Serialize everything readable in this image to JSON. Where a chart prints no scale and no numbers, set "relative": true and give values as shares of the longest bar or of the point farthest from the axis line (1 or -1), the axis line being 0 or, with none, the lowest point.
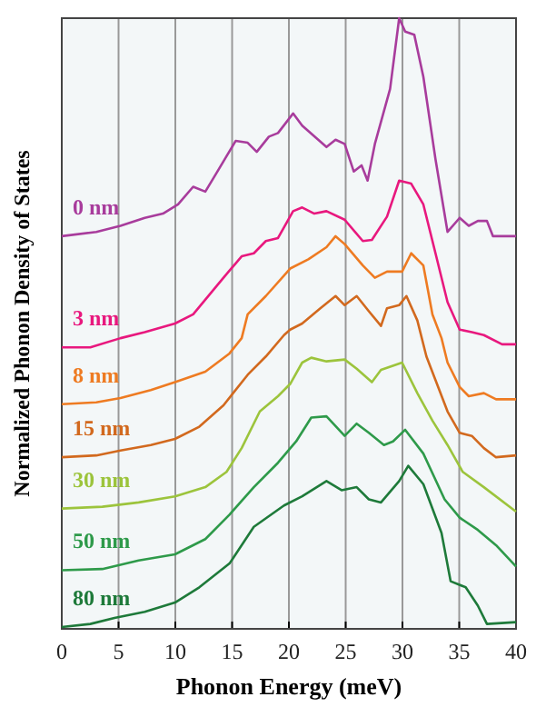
{
  "chart_data": {
    "type": "line",
    "relative": true,
    "xlabel": "Phonon Energy (meV)",
    "ylabel": "Normalized Phonon Density of States",
    "xlim": [
      0,
      40
    ],
    "xticks": [
      0,
      5,
      10,
      15,
      20,
      25,
      30,
      35,
      40
    ],
    "grid": "x",
    "marker": "none",
    "line_style": "solid",
    "series": [
      {
        "name": "0 nm",
        "color": "#a83c9c",
        "x": [
          0,
          3.04,
          5.17,
          7.31,
          8.91,
          10.24,
          11.57,
          12.64,
          13.71,
          15.31,
          16.37,
          17.17,
          18.24,
          19.04,
          20.37,
          21.17,
          23.31,
          24.11,
          24.91,
          25.71,
          26.4,
          26.93,
          27.57,
          28.91,
          29.71,
          30.24,
          31.04,
          31.84,
          32.91,
          33.97,
          35.04,
          35.84,
          36.64,
          37.44,
          37.97,
          40
        ],
        "values": [
          0.643,
          0.65,
          0.66,
          0.673,
          0.68,
          0.695,
          0.724,
          0.716,
          0.749,
          0.799,
          0.796,
          0.781,
          0.806,
          0.812,
          0.844,
          0.824,
          0.789,
          0.801,
          0.794,
          0.749,
          0.759,
          0.734,
          0.794,
          0.884,
          1,
          0.978,
          0.973,
          0.904,
          0.769,
          0.65,
          0.673,
          0.66,
          0.668,
          0.668,
          0.643,
          0.643
        ]
      },
      {
        "name": "3 nm",
        "color": "#e8187e",
        "x": [
          0,
          2.51,
          5.17,
          7.31,
          9.97,
          11.57,
          14.24,
          15.84,
          16.91,
          17.97,
          19.04,
          20.37,
          21.17,
          22.24,
          23.31,
          24.91,
          26.51,
          27.31,
          28.64,
          29.71,
          30.77,
          31.84,
          32.91,
          33.97,
          35.04,
          36.11,
          37.17,
          38.77,
          40
        ],
        "values": [
          0.461,
          0.461,
          0.476,
          0.486,
          0.5,
          0.515,
          0.575,
          0.61,
          0.615,
          0.635,
          0.64,
          0.684,
          0.69,
          0.68,
          0.684,
          0.67,
          0.635,
          0.637,
          0.675,
          0.734,
          0.729,
          0.695,
          0.615,
          0.535,
          0.49,
          0.486,
          0.481,
          0.466,
          0.466
        ]
      },
      {
        "name": "8 nm",
        "color": "#ee7b22",
        "x": [
          0,
          3.04,
          5.17,
          7.84,
          9.97,
          12.64,
          14.77,
          15.84,
          16.37,
          17.97,
          20.11,
          21.71,
          23.31,
          24.11,
          24.91,
          26.51,
          27.57,
          28.64,
          29.97,
          30.77,
          31.84,
          32.64,
          33.44,
          33.97,
          35.04,
          35.84,
          37.17,
          38.24,
          40
        ],
        "values": [
          0.368,
          0.371,
          0.378,
          0.391,
          0.404,
          0.421,
          0.451,
          0.476,
          0.515,
          0.545,
          0.59,
          0.605,
          0.625,
          0.643,
          0.63,
          0.595,
          0.575,
          0.585,
          0.585,
          0.615,
          0.595,
          0.515,
          0.476,
          0.436,
          0.396,
          0.381,
          0.386,
          0.376,
          0.376
        ]
      },
      {
        "name": "15 nm",
        "color": "#d2691e",
        "x": [
          0,
          3.04,
          5.17,
          7.84,
          9.97,
          12.11,
          14.24,
          16.37,
          17.97,
          19.57,
          20.11,
          21.17,
          22.77,
          24.11,
          24.91,
          25.97,
          27.04,
          28.11,
          28.64,
          29.71,
          30.35,
          31.31,
          32.11,
          33.97,
          35.04,
          36.11,
          37.17,
          38.24,
          40
        ],
        "values": [
          0.281,
          0.284,
          0.292,
          0.301,
          0.311,
          0.331,
          0.366,
          0.416,
          0.446,
          0.481,
          0.49,
          0.5,
          0.525,
          0.545,
          0.53,
          0.545,
          0.52,
          0.496,
          0.525,
          0.53,
          0.545,
          0.505,
          0.446,
          0.356,
          0.321,
          0.316,
          0.296,
          0.281,
          0.284
        ]
      },
      {
        "name": "30 nm",
        "color": "#9cc43c",
        "x": [
          0,
          3.57,
          6.77,
          9.97,
          12.64,
          14.51,
          15.84,
          17.44,
          19.04,
          20.11,
          21.17,
          21.97,
          23.31,
          24.91,
          25.97,
          27.31,
          28.11,
          29.97,
          31.31,
          32.64,
          33.97,
          35.31,
          37.17,
          40
        ],
        "values": [
          0.197,
          0.2,
          0.207,
          0.217,
          0.232,
          0.257,
          0.296,
          0.356,
          0.381,
          0.401,
          0.436,
          0.444,
          0.438,
          0.441,
          0.426,
          0.404,
          0.424,
          0.436,
          0.386,
          0.341,
          0.301,
          0.257,
          0.232,
          0.192
        ]
      },
      {
        "name": "50 nm",
        "color": "#2e9a4a",
        "x": [
          0,
          3.57,
          6.77,
          9.97,
          12.64,
          14.77,
          16.91,
          19.04,
          20.64,
          21.97,
          23.31,
          24.91,
          25.97,
          27.04,
          28.37,
          29.17,
          30.24,
          31.84,
          33.71,
          35.04,
          36.64,
          38.24,
          40
        ],
        "values": [
          0.096,
          0.098,
          0.112,
          0.122,
          0.147,
          0.187,
          0.232,
          0.272,
          0.307,
          0.346,
          0.348,
          0.316,
          0.336,
          0.321,
          0.301,
          0.307,
          0.326,
          0.287,
          0.212,
          0.182,
          0.162,
          0.137,
          0.102
        ]
      },
      {
        "name": "80 nm",
        "color": "#1e7a3a",
        "x": [
          0,
          2.51,
          4.64,
          7.31,
          9.97,
          12.11,
          14.77,
          16.91,
          19.57,
          21.17,
          23.31,
          24.64,
          25.97,
          27.04,
          28.11,
          29.71,
          30.51,
          31.84,
          33.44,
          34.24,
          35.57,
          36.64,
          37.44,
          40
        ],
        "values": [
          0.003,
          0.008,
          0.018,
          0.028,
          0.043,
          0.068,
          0.107,
          0.167,
          0.202,
          0.217,
          0.242,
          0.227,
          0.232,
          0.212,
          0.207,
          0.242,
          0.267,
          0.237,
          0.157,
          0.078,
          0.068,
          0.038,
          0.008,
          0.011
        ]
      }
    ]
  }
}
